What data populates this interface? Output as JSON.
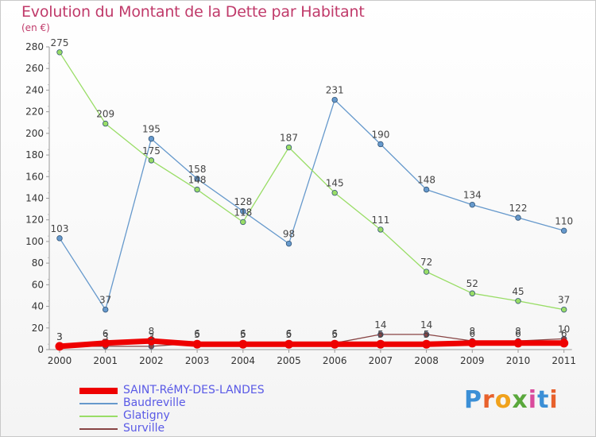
{
  "title": "Evolution du Montant de la Dette par Habitant",
  "unit": "(en €)",
  "logo": "Proxiti",
  "colors": {
    "title": "#c03a6a",
    "legend_text": "#5a5ae6"
  },
  "chart_data": {
    "type": "line",
    "title": "Evolution du Montant de la Dette par Habitant",
    "ylabel": "(en €)",
    "xlabel": "",
    "x": [
      "2000",
      "2001",
      "2002",
      "2003",
      "2004",
      "2005",
      "2006",
      "2007",
      "2008",
      "2009",
      "2010",
      "2011"
    ],
    "ylim": [
      0,
      280
    ],
    "yticks": [
      0,
      20,
      40,
      60,
      80,
      100,
      120,
      140,
      160,
      180,
      200,
      220,
      240,
      260,
      280
    ],
    "grid": false,
    "legend_position": "bottom-left",
    "series": [
      {
        "name": "SAINT-RéMY-DES-LANDES",
        "color": "#ee0000",
        "width": 7,
        "values": [
          3,
          6,
          8,
          5,
          5,
          5,
          5,
          5,
          5,
          6,
          6,
          6
        ],
        "labels": [
          "3",
          "6",
          "8",
          "5",
          "5",
          "5",
          "5",
          "5",
          "5",
          "6",
          "6",
          "6"
        ]
      },
      {
        "name": "Baudreville",
        "color": "#6699cc",
        "width": 1.3,
        "values": [
          103,
          37,
          195,
          158,
          128,
          98,
          231,
          190,
          148,
          134,
          122,
          110
        ],
        "labels": [
          "103",
          "37",
          "195",
          "158",
          "128",
          "98",
          "231",
          "190",
          "148",
          "134",
          "122",
          "110"
        ]
      },
      {
        "name": "Glatigny",
        "color": "#99dd66",
        "width": 1.3,
        "values": [
          275,
          209,
          175,
          148,
          118,
          187,
          145,
          111,
          72,
          52,
          45,
          37
        ],
        "labels": [
          "275",
          "209",
          "175",
          "148",
          "118",
          "187",
          "145",
          "111",
          "72",
          "52",
          "45",
          "37"
        ]
      },
      {
        "name": "Surville",
        "color": "#884444",
        "width": 1.3,
        "values": [
          3,
          3,
          3,
          6,
          6,
          6,
          6,
          14,
          14,
          8,
          8,
          10
        ],
        "labels": [
          "3",
          "3",
          "3",
          "6",
          "6",
          "6",
          "6",
          "14",
          "14",
          "8",
          "8",
          "10"
        ]
      }
    ]
  }
}
